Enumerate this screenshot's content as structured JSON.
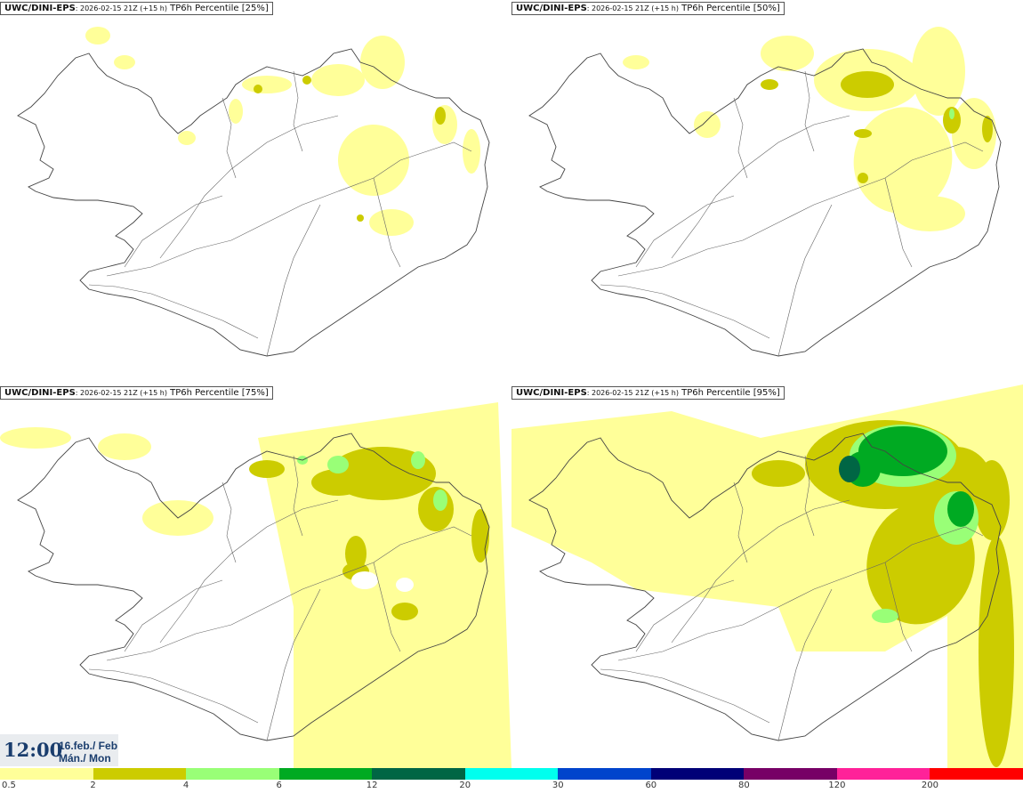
{
  "panels": [
    {
      "model": "UWC/DINI-EPS",
      "run": ": 2026-02-15 21Z (+15 h)",
      "variable": " TP6h Percentile [25%]",
      "level": 0
    },
    {
      "model": "UWC/DINI-EPS",
      "run": ": 2026-02-15 21Z (+15 h)",
      "variable": " TP6h Percentile [50%]",
      "level": 1
    },
    {
      "model": "UWC/DINI-EPS",
      "run": ": 2026-02-15 21Z (+15 h)",
      "variable": " TP6h Percentile [75%]",
      "level": 2
    },
    {
      "model": "UWC/DINI-EPS",
      "run": ": 2026-02-15 21Z (+15 h)",
      "variable": " TP6h Percentile [95%]",
      "level": 3
    }
  ],
  "valid_time": {
    "time": "12:00",
    "date_line": "16.feb./ Feb",
    "day_line": "Mán./ Mon"
  },
  "legend": {
    "labels": [
      "0.5",
      "2",
      "4",
      "6",
      "12",
      "20",
      "30",
      "60",
      "80",
      "120",
      "200"
    ],
    "colors": [
      "#ffff99",
      "#cccc00",
      "#99ff77",
      "#00aa22",
      "#006644",
      "#00ffee",
      "#0044cc",
      "#000077",
      "#770066",
      "#ff2299",
      "#ff0000"
    ]
  }
}
